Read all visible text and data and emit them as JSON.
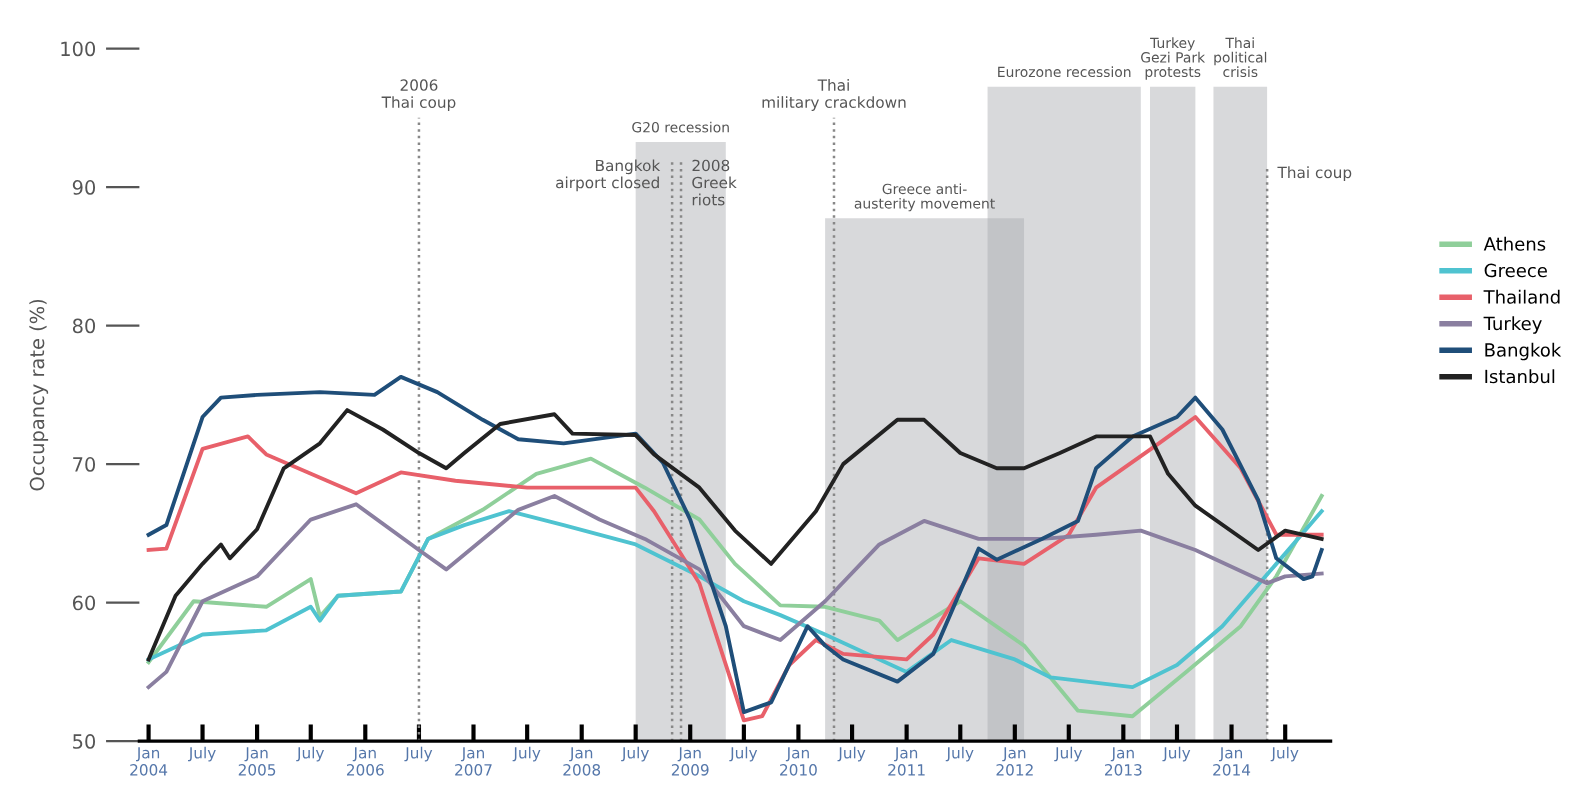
{
  "chart_data": {
    "type": "line",
    "ylabel": "Occupancy rate (%)",
    "xlim": [
      "2003-12",
      "2014-12"
    ],
    "ylim": [
      50,
      100
    ],
    "yticks": [
      50,
      60,
      70,
      80,
      90,
      100
    ],
    "xticks": [
      {
        "value": "2004-01",
        "label": "Jan\n2004"
      },
      {
        "value": "2004-07",
        "label": "July"
      },
      {
        "value": "2005-01",
        "label": "Jan\n2005"
      },
      {
        "value": "2005-07",
        "label": "July"
      },
      {
        "value": "2006-01",
        "label": "Jan\n2006"
      },
      {
        "value": "2006-07",
        "label": "July"
      },
      {
        "value": "2007-01",
        "label": "Jan\n2007"
      },
      {
        "value": "2007-07",
        "label": "July"
      },
      {
        "value": "2008-01",
        "label": "Jan\n2008"
      },
      {
        "value": "2008-07",
        "label": "July"
      },
      {
        "value": "2009-01",
        "label": "Jan\n2009"
      },
      {
        "value": "2009-07",
        "label": "July"
      },
      {
        "value": "2010-01",
        "label": "Jan\n2010"
      },
      {
        "value": "2010-07",
        "label": "July"
      },
      {
        "value": "2011-01",
        "label": "Jan\n2011"
      },
      {
        "value": "2011-07",
        "label": "July"
      },
      {
        "value": "2012-01",
        "label": "Jan\n2012"
      },
      {
        "value": "2012-07",
        "label": "July"
      },
      {
        "value": "2013-01",
        "label": "Jan\n2013"
      },
      {
        "value": "2013-07",
        "label": "July"
      },
      {
        "value": "2014-01",
        "label": "Jan\n2014"
      },
      {
        "value": "2014-07",
        "label": "July"
      }
    ],
    "grid": false,
    "legend": "right",
    "line_style": "solid",
    "marker": "none",
    "series": [
      {
        "name": "Athens",
        "color": "#8fcf9a",
        "x": [
          "2004-01",
          "2004-06",
          "2005-02",
          "2005-07",
          "2005-08",
          "2005-10",
          "2006-05",
          "2006-08",
          "2007-02",
          "2007-08",
          "2008-02",
          "2008-08",
          "2009-02",
          "2009-06",
          "2009-11",
          "2010-04",
          "2010-10",
          "2010-12",
          "2011-07",
          "2012-02",
          "2012-08",
          "2013-02",
          "2013-08",
          "2014-02",
          "2014-06",
          "2014-11"
        ],
        "values": [
          55.7,
          60.1,
          59.7,
          61.7,
          59.0,
          60.5,
          60.8,
          64.6,
          66.7,
          69.3,
          70.4,
          68.3,
          66.0,
          62.8,
          59.8,
          59.7,
          58.7,
          57.3,
          60.1,
          56.9,
          52.2,
          51.8,
          55.0,
          58.3,
          61.9,
          67.7
        ]
      },
      {
        "name": "Greece",
        "color": "#4fc3d0",
        "x": [
          "2004-01",
          "2004-07",
          "2005-02",
          "2005-07",
          "2005-08",
          "2005-10",
          "2006-05",
          "2006-08",
          "2006-12",
          "2007-05",
          "2007-11",
          "2008-07",
          "2009-02",
          "2009-07",
          "2009-11",
          "2010-04",
          "2011-01",
          "2011-06",
          "2012-01",
          "2012-05",
          "2013-02",
          "2013-07",
          "2013-12",
          "2014-06",
          "2014-11"
        ],
        "values": [
          55.9,
          57.7,
          58.0,
          59.7,
          58.7,
          60.5,
          60.8,
          64.6,
          65.6,
          66.6,
          65.6,
          64.2,
          61.9,
          60.1,
          59.1,
          57.7,
          55.0,
          57.3,
          55.9,
          54.6,
          53.9,
          55.5,
          58.3,
          62.8,
          66.6
        ]
      },
      {
        "name": "Thailand",
        "color": "#e8606a",
        "x": [
          "2004-01",
          "2004-03",
          "2004-07",
          "2004-12",
          "2005-02",
          "2005-12",
          "2006-05",
          "2006-11",
          "2007-07",
          "2008-07",
          "2008-09",
          "2009-02",
          "2009-07",
          "2009-09",
          "2009-12",
          "2010-03",
          "2010-06",
          "2011-01",
          "2011-04",
          "2011-09",
          "2012-02",
          "2012-07",
          "2012-10",
          "2013-05",
          "2013-09",
          "2014-02",
          "2014-06",
          "2014-11"
        ],
        "values": [
          63.8,
          63.9,
          71.1,
          72.0,
          70.7,
          67.9,
          69.4,
          68.8,
          68.3,
          68.3,
          66.6,
          61.4,
          51.5,
          51.8,
          55.5,
          57.3,
          56.3,
          55.9,
          57.7,
          63.2,
          62.8,
          64.9,
          68.3,
          71.5,
          73.4,
          69.7,
          64.9,
          64.9
        ]
      },
      {
        "name": "Turkey",
        "color": "#8a7fa0",
        "x": [
          "2004-01",
          "2004-03",
          "2004-07",
          "2005-01",
          "2005-07",
          "2005-12",
          "2006-07",
          "2006-10",
          "2007-06",
          "2007-10",
          "2008-03",
          "2008-08",
          "2009-02",
          "2009-07",
          "2009-11",
          "2010-04",
          "2010-10",
          "2011-03",
          "2011-09",
          "2012-04",
          "2012-10",
          "2013-03",
          "2013-09",
          "2014-05",
          "2014-07",
          "2014-11"
        ],
        "values": [
          53.9,
          55.0,
          60.1,
          61.9,
          66.0,
          67.1,
          63.8,
          62.4,
          66.7,
          67.7,
          66.0,
          64.6,
          62.4,
          58.3,
          57.3,
          60.1,
          64.2,
          65.9,
          64.6,
          64.6,
          64.9,
          65.2,
          63.8,
          61.4,
          61.9,
          62.1
        ]
      },
      {
        "name": "Bangkok",
        "color": "#1f4e79",
        "x": [
          "2004-01",
          "2004-03",
          "2004-07",
          "2004-09",
          "2005-01",
          "2005-08",
          "2006-02",
          "2006-05",
          "2006-09",
          "2007-02",
          "2007-06",
          "2007-11",
          "2008-07",
          "2008-10",
          "2009-01",
          "2009-05",
          "2009-07",
          "2009-10",
          "2010-02",
          "2010-04",
          "2010-06",
          "2010-12",
          "2011-04",
          "2011-09",
          "2011-11",
          "2012-04",
          "2012-08",
          "2012-10",
          "2013-02",
          "2013-07",
          "2013-09",
          "2013-12",
          "2014-04",
          "2014-06",
          "2014-09",
          "2014-10",
          "2014-11"
        ],
        "values": [
          64.9,
          65.6,
          73.4,
          74.8,
          75.0,
          75.2,
          75.0,
          76.3,
          75.2,
          73.2,
          71.8,
          71.5,
          72.2,
          70.1,
          66.0,
          58.3,
          52.1,
          52.8,
          58.3,
          56.9,
          55.9,
          54.3,
          56.3,
          63.9,
          63.1,
          64.6,
          65.9,
          69.7,
          72.0,
          73.4,
          74.8,
          72.5,
          67.4,
          63.2,
          61.7,
          61.9,
          63.8
        ]
      },
      {
        "name": "Istanbul",
        "color": "#222222",
        "x": [
          "2004-01",
          "2004-04",
          "2004-07",
          "2004-09",
          "2004-10",
          "2005-01",
          "2005-04",
          "2005-08",
          "2005-11",
          "2006-03",
          "2006-07",
          "2006-10",
          "2006-12",
          "2007-04",
          "2007-10",
          "2007-12",
          "2008-07",
          "2008-09",
          "2009-02",
          "2009-06",
          "2009-10",
          "2010-03",
          "2010-06",
          "2010-12",
          "2011-03",
          "2011-07",
          "2011-11",
          "2012-02",
          "2012-06",
          "2012-10",
          "2013-04",
          "2013-06",
          "2013-09",
          "2014-04",
          "2014-07",
          "2014-11"
        ],
        "values": [
          55.9,
          60.5,
          62.8,
          64.2,
          63.2,
          65.3,
          69.7,
          71.5,
          73.9,
          72.5,
          70.8,
          69.7,
          70.8,
          72.9,
          73.6,
          72.2,
          72.1,
          70.7,
          68.3,
          65.2,
          62.8,
          66.6,
          70.0,
          73.2,
          73.2,
          70.8,
          69.7,
          69.7,
          70.8,
          72.0,
          72.0,
          69.3,
          67.0,
          63.8,
          65.2,
          64.6
        ]
      }
    ],
    "ref_lines": [
      {
        "axis": "x",
        "value": "2006-07",
        "label": "2006\nThai coup",
        "color": "#888888",
        "line_style": "dotted"
      },
      {
        "axis": "x",
        "value": "2008-11",
        "label": "Bangkok\nairport closed",
        "color": "#888888",
        "line_style": "dotted"
      },
      {
        "axis": "x",
        "value": "2008-12",
        "label": "2008\nGreek\nriots",
        "color": "#888888",
        "line_style": "dotted"
      },
      {
        "axis": "x",
        "value": "2010-05",
        "label": "Thai\nmilitary crackdown",
        "color": "#888888",
        "line_style": "dotted"
      },
      {
        "axis": "x",
        "value": "2014-05",
        "label": "Thai coup",
        "color": "#888888",
        "line_style": "dotted"
      }
    ],
    "bands": [
      {
        "axis": "x",
        "from": "2008-07",
        "to": "2009-05",
        "label": "G20 recession",
        "color": "#a9abb0"
      },
      {
        "axis": "x",
        "from": "2010-04",
        "to": "2012-02",
        "label": "Greece anti-\nausterity movement",
        "color": "#a9abb0"
      },
      {
        "axis": "x",
        "from": "2011-10",
        "to": "2013-03",
        "label": "Eurozone recession",
        "color": "#a9abb0"
      },
      {
        "axis": "x",
        "from": "2013-04",
        "to": "2013-09",
        "label": "Turkey\nGezi Park\nprotests",
        "color": "#a9abb0"
      },
      {
        "axis": "x",
        "from": "2013-11",
        "to": "2014-05",
        "label": "Thai\npolitical\ncrisis",
        "color": "#a9abb0"
      }
    ]
  }
}
